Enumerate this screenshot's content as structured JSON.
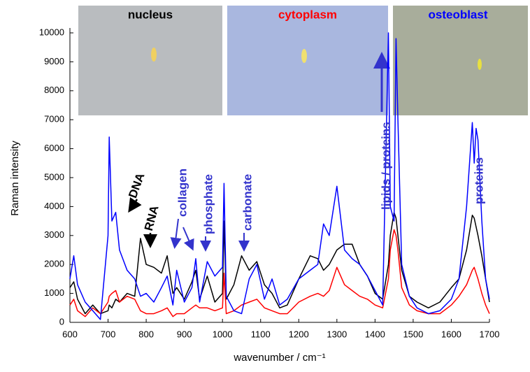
{
  "chart_data": {
    "type": "line",
    "xlabel": "wavenumber / cm⁻¹",
    "ylabel": "Raman intensity",
    "x": [
      600,
      610,
      620,
      640,
      660,
      680,
      700,
      703,
      710,
      720,
      730,
      750,
      770,
      785,
      800,
      820,
      840,
      855,
      870,
      880,
      900,
      920,
      930,
      940,
      960,
      980,
      1000,
      1004,
      1010,
      1030,
      1050,
      1070,
      1090,
      1110,
      1130,
      1150,
      1170,
      1200,
      1230,
      1250,
      1265,
      1280,
      1300,
      1320,
      1340,
      1360,
      1380,
      1400,
      1420,
      1435,
      1440,
      1450,
      1455,
      1460,
      1470,
      1490,
      1510,
      1540,
      1570,
      1600,
      1620,
      1640,
      1655,
      1660,
      1665,
      1670,
      1680,
      1690,
      1700
    ],
    "series": [
      {
        "name": "nucleus",
        "color": "#000000",
        "values": [
          1200,
          1400,
          800,
          300,
          600,
          300,
          400,
          600,
          500,
          800,
          700,
          1000,
          900,
          2900,
          2000,
          1900,
          1700,
          2300,
          1000,
          1200,
          800,
          1400,
          1800,
          800,
          1600,
          700,
          1000,
          3500,
          800,
          1300,
          2300,
          1800,
          2100,
          1300,
          1000,
          500,
          600,
          1500,
          2300,
          2200,
          1800,
          2000,
          2500,
          2700,
          2700,
          2000,
          1600,
          1000,
          800,
          2000,
          3000,
          3800,
          3600,
          3000,
          1800,
          900,
          700,
          500,
          700,
          1200,
          1500,
          2500,
          3700,
          3600,
          3300,
          3000,
          2300,
          1500,
          700
        ]
      },
      {
        "name": "cytoplasm",
        "color": "#ff0000",
        "values": [
          600,
          800,
          400,
          200,
          500,
          300,
          700,
          900,
          1000,
          1100,
          700,
          900,
          800,
          400,
          300,
          300,
          400,
          500,
          200,
          300,
          300,
          500,
          600,
          500,
          500,
          400,
          500,
          1700,
          300,
          400,
          600,
          700,
          800,
          500,
          400,
          300,
          300,
          700,
          900,
          1000,
          900,
          1100,
          1900,
          1300,
          1100,
          900,
          800,
          600,
          500,
          1500,
          2500,
          3200,
          3000,
          2500,
          1200,
          600,
          400,
          300,
          300,
          600,
          900,
          1300,
          1800,
          1900,
          1700,
          1500,
          1000,
          600,
          300
        ]
      },
      {
        "name": "osteoblast",
        "color": "#0000ff",
        "values": [
          1500,
          2300,
          1300,
          700,
          400,
          100,
          3000,
          6400,
          3500,
          3800,
          2500,
          1800,
          1500,
          900,
          1000,
          700,
          1200,
          1600,
          600,
          1800,
          700,
          1200,
          2200,
          700,
          2100,
          1600,
          1900,
          4800,
          900,
          400,
          300,
          1500,
          2000,
          800,
          1500,
          600,
          800,
          1500,
          1800,
          2000,
          3400,
          3000,
          4700,
          2500,
          2200,
          2000,
          1600,
          1100,
          600,
          10000,
          4000,
          3500,
          9800,
          7000,
          2000,
          900,
          500,
          300,
          400,
          800,
          1500,
          4000,
          6900,
          5500,
          6700,
          6300,
          3500,
          1500,
          800
        ]
      }
    ],
    "annotations": [
      {
        "text": "DNA",
        "color": "#000000"
      },
      {
        "text": "RNA",
        "color": "#000000"
      },
      {
        "text": "collagen",
        "color": "#3333cc"
      },
      {
        "text": "phosphate",
        "color": "#3333cc"
      },
      {
        "text": "carbonate",
        "color": "#3333cc"
      },
      {
        "text": "lipids / proteins",
        "color": "#3333cc"
      },
      {
        "text": "proteins",
        "color": "#3333cc"
      }
    ],
    "xlim": [
      600,
      1700
    ],
    "xticks": [
      600,
      700,
      800,
      900,
      1000,
      1100,
      1200,
      1300,
      1400,
      1500,
      1600,
      1700
    ],
    "ylim": [
      0,
      10000
    ],
    "yticks": [
      0,
      1000,
      2000,
      3000,
      4000,
      5000,
      6000,
      7000,
      8000,
      9000,
      10000
    ],
    "grid": false
  }
}
